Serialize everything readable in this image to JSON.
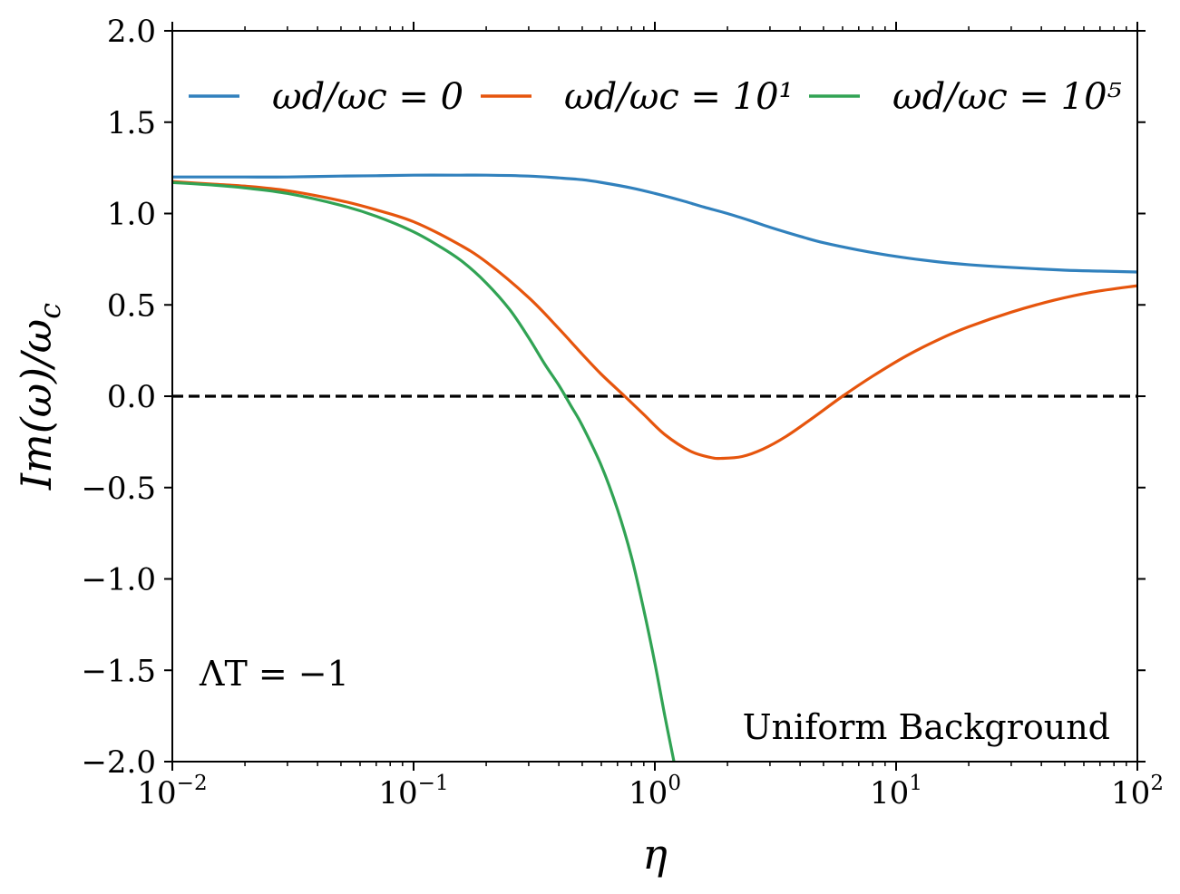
{
  "chart_data": {
    "type": "line",
    "title": "",
    "xlabel": "η",
    "ylabel": "Im(ω)/ω_c",
    "x_scale": "log",
    "xlim": [
      0.01,
      100
    ],
    "ylim": [
      -2.0,
      2.0
    ],
    "x_ticks": [
      {
        "value": 0.01,
        "base": "10",
        "exp": "−2"
      },
      {
        "value": 0.1,
        "base": "10",
        "exp": "−1"
      },
      {
        "value": 1,
        "base": "10",
        "exp": "0"
      },
      {
        "value": 10,
        "base": "10",
        "exp": "1"
      },
      {
        "value": 100,
        "base": "10",
        "exp": "2"
      }
    ],
    "y_ticks": [
      {
        "value": 2.0,
        "label": "2.0"
      },
      {
        "value": 1.5,
        "label": "1.5"
      },
      {
        "value": 1.0,
        "label": "1.0"
      },
      {
        "value": 0.5,
        "label": "0.5"
      },
      {
        "value": 0.0,
        "label": "0.0"
      },
      {
        "value": -0.5,
        "label": "−0.5"
      },
      {
        "value": -1.0,
        "label": "−1.0"
      },
      {
        "value": -1.5,
        "label": "−1.5"
      },
      {
        "value": -2.0,
        "label": "−2.0"
      }
    ],
    "grid": false,
    "legend_position": "top",
    "reference_line": {
      "y": 0,
      "style": "dashed",
      "color": "#000000"
    },
    "series": [
      {
        "name": "ω_d/ω_c = 0",
        "legend_label": "ωd/ωc = 0",
        "color": "#3181bd",
        "x": [
          0.01,
          0.015,
          0.02,
          0.03,
          0.05,
          0.07,
          0.1,
          0.15,
          0.2,
          0.3,
          0.4,
          0.5,
          0.6,
          0.8,
          1.0,
          1.3,
          1.6,
          2.0,
          2.5,
          3.0,
          4.0,
          5.0,
          7.0,
          10,
          15,
          20,
          30,
          50,
          70,
          100
        ],
        "y": [
          1.2,
          1.2,
          1.2,
          1.2,
          1.205,
          1.207,
          1.21,
          1.21,
          1.21,
          1.205,
          1.195,
          1.185,
          1.17,
          1.14,
          1.11,
          1.07,
          1.035,
          1.0,
          0.96,
          0.925,
          0.875,
          0.84,
          0.8,
          0.765,
          0.735,
          0.72,
          0.705,
          0.69,
          0.685,
          0.68
        ]
      },
      {
        "name": "ω_d/ω_c = 10^1",
        "legend_label": "ωd/ωc = 10¹",
        "color": "#e6550d",
        "x": [
          0.01,
          0.015,
          0.02,
          0.03,
          0.05,
          0.07,
          0.1,
          0.15,
          0.2,
          0.3,
          0.4,
          0.5,
          0.6,
          0.75,
          0.9,
          1.1,
          1.4,
          1.7,
          1.9,
          2.3,
          2.8,
          3.5,
          4.5,
          6.0,
          8.0,
          11,
          15,
          20,
          30,
          45,
          65,
          100
        ],
        "y": [
          1.175,
          1.16,
          1.15,
          1.125,
          1.07,
          1.02,
          0.955,
          0.84,
          0.735,
          0.54,
          0.37,
          0.23,
          0.12,
          0.0,
          -0.1,
          -0.21,
          -0.3,
          -0.335,
          -0.34,
          -0.33,
          -0.29,
          -0.22,
          -0.12,
          0.0,
          0.11,
          0.22,
          0.31,
          0.38,
          0.46,
          0.525,
          0.57,
          0.605
        ]
      },
      {
        "name": "ω_d/ω_c = 10^5",
        "legend_label": "ωd/ωc = 10⁵",
        "color": "#31a354",
        "x": [
          0.01,
          0.015,
          0.02,
          0.03,
          0.05,
          0.07,
          0.1,
          0.13,
          0.16,
          0.2,
          0.25,
          0.3,
          0.35,
          0.4,
          0.45,
          0.5,
          0.6,
          0.7,
          0.8,
          0.9,
          1.0,
          1.1,
          1.2
        ],
        "y": [
          1.17,
          1.155,
          1.14,
          1.11,
          1.045,
          0.985,
          0.9,
          0.815,
          0.735,
          0.62,
          0.475,
          0.32,
          0.175,
          0.06,
          -0.055,
          -0.16,
          -0.38,
          -0.62,
          -0.88,
          -1.17,
          -1.46,
          -1.75,
          -2.0
        ]
      }
    ],
    "annotations": [
      {
        "text": "ΛT = −1",
        "position": "lower-left"
      },
      {
        "text": "Uniform Background",
        "position": "lower-right"
      }
    ]
  }
}
